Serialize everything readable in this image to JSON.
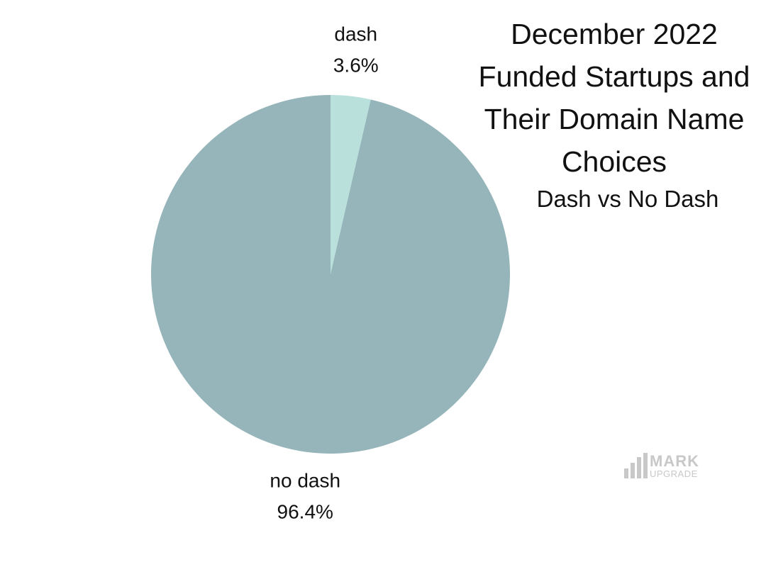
{
  "chart_data": {
    "type": "pie",
    "title": "December 2022 Funded Startups and Their Domain Name Choices",
    "subtitle": "Dash vs No Dash",
    "categories": [
      "dash",
      "no dash"
    ],
    "values": [
      3.6,
      96.4
    ],
    "value_labels": [
      "3.6%",
      "96.4%"
    ],
    "colors": [
      "#bae0dc",
      "#95b5ba"
    ]
  },
  "logo": {
    "line1": "MARK",
    "line2": "UPGRADE"
  }
}
